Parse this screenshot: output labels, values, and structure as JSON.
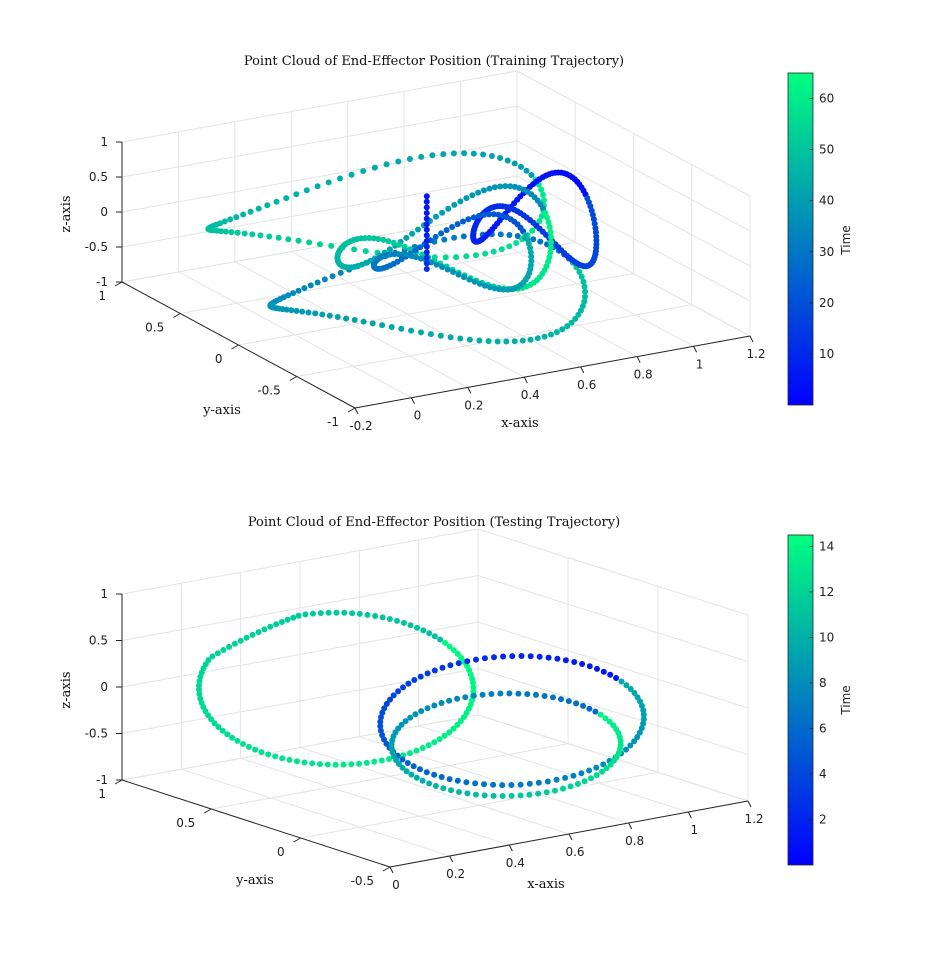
{
  "chart_data": [
    {
      "type": "scatter",
      "title": "Point Cloud of End-Effector Position (Training Trajectory)",
      "xlabel": "x-axis",
      "ylabel": "y-axis",
      "zlabel": "z-axis",
      "xlim": [
        -0.2,
        1.2
      ],
      "ylim": [
        -1,
        1
      ],
      "zlim": [
        -1,
        1
      ],
      "xticks": [
        "-0.2",
        "0",
        "0.2",
        "0.4",
        "0.6",
        "0.8",
        "1",
        "1.2"
      ],
      "yticks": [
        "-1",
        "-0.5",
        "0",
        "0.5",
        "1"
      ],
      "zticks": [
        "-1",
        "-0.5",
        "0",
        "0.5",
        "1"
      ],
      "grid": true,
      "colormap": [
        "#0000ff",
        "#00ff80"
      ],
      "colorbar": {
        "label": "Time",
        "range": [
          0,
          65
        ],
        "ticks": [
          "10",
          "20",
          "30",
          "40",
          "50",
          "60"
        ]
      },
      "color_variable": "Time",
      "time_range": [
        0,
        65
      ]
    },
    {
      "type": "scatter",
      "title": "Point Cloud of End-Effector Position (Testing Trajectory)",
      "xlabel": "x-axis",
      "ylabel": "y-axis",
      "zlabel": "z-axis",
      "xlim": [
        0,
        1.2
      ],
      "ylim": [
        -0.5,
        1
      ],
      "zlim": [
        -1,
        1
      ],
      "xticks": [
        "0",
        "0.2",
        "0.4",
        "0.6",
        "0.8",
        "1",
        "1.2"
      ],
      "yticks": [
        "-0.5",
        "0",
        "0.5",
        "1"
      ],
      "zticks": [
        "-1",
        "-0.5",
        "0",
        "0.5",
        "1"
      ],
      "grid": true,
      "colormap": [
        "#0000ff",
        "#00ff80"
      ],
      "colorbar": {
        "label": "Time",
        "range": [
          0,
          14.5
        ],
        "ticks": [
          "2",
          "4",
          "6",
          "8",
          "10",
          "12",
          "14"
        ]
      },
      "color_variable": "Time",
      "time_range": [
        0,
        14.5
      ]
    }
  ]
}
